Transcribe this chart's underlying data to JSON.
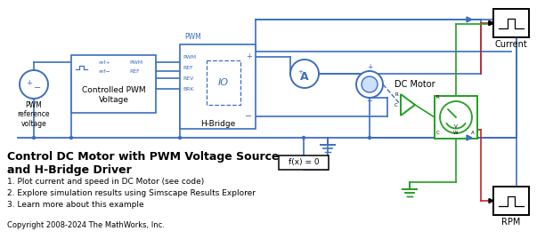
{
  "fig_width": 6.12,
  "fig_height": 2.78,
  "dpi": 100,
  "bg_color": "#ffffff",
  "blue": "#3B6EBF",
  "green": "#22A022",
  "red": "#CC2222",
  "black": "#000000",
  "title": "Control DC Motor with PWM Voltage Source\nand H-Bridge Driver",
  "items": [
    "1. Plot current and speed in DC Motor (see code)",
    "2. Explore simulation results using Simscape Results Explorer",
    "3. Learn more about this example"
  ],
  "copyright": "Copyright 2008-2024 The MathWorks, Inc.",
  "current_label": "Current",
  "rpm_label": "RPM",
  "pwm_voltage_label": "Controlled PWM\nVoltage",
  "hbridge_label": "H-Bridge",
  "dc_motor_label": "DC Motor",
  "pwm_ref_label": "PWM\nreference\nvoltage",
  "fx0_label": "f(x) = 0"
}
